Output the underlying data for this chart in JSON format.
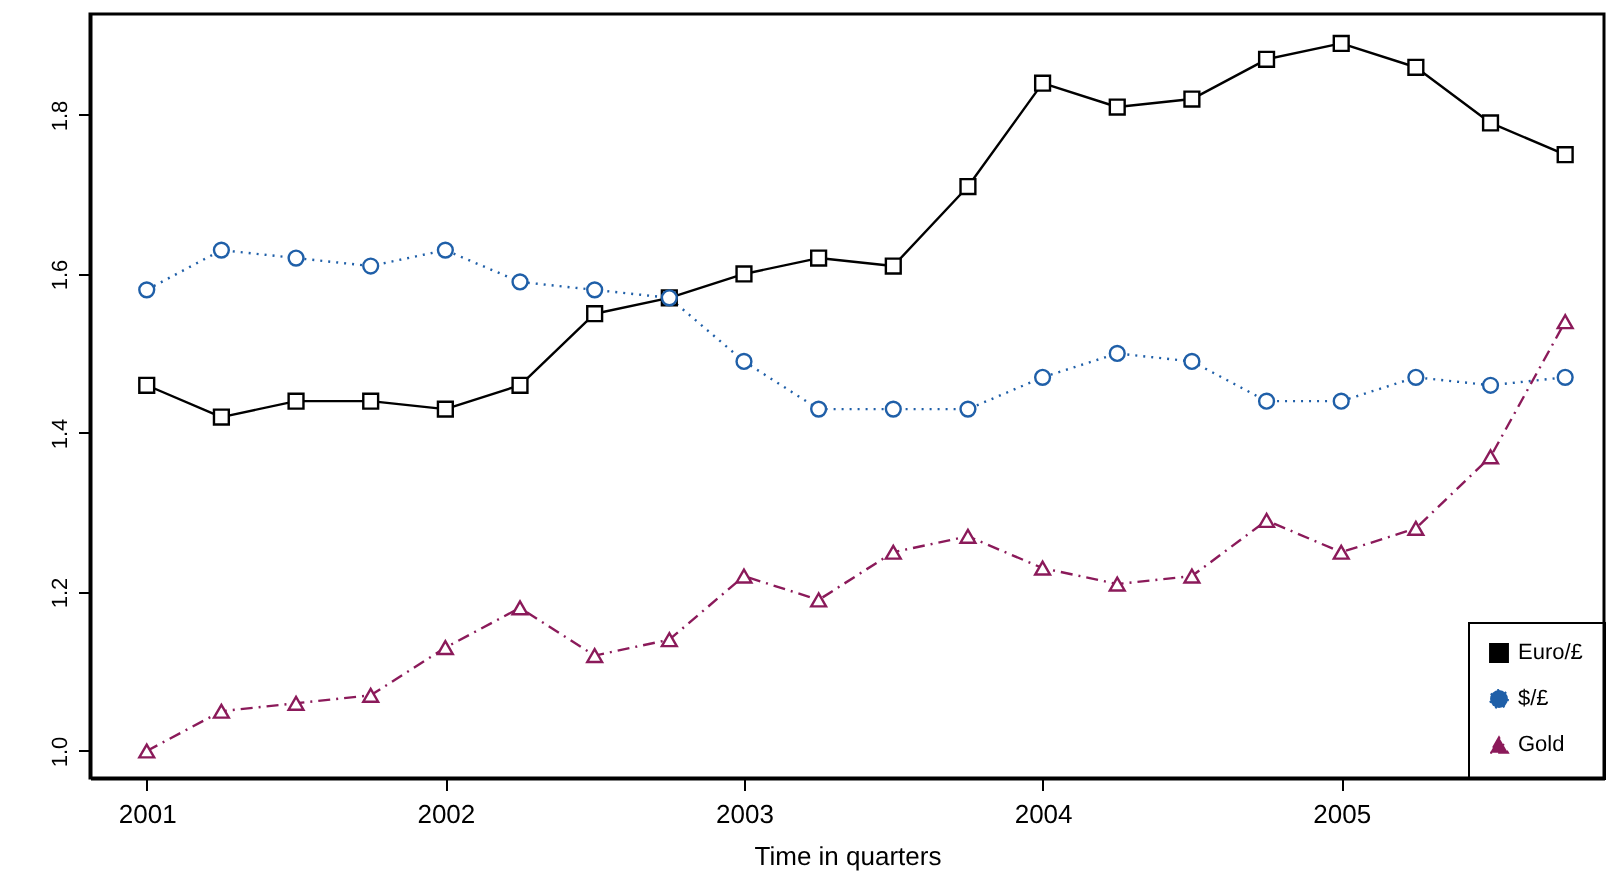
{
  "chart_data": {
    "type": "line",
    "xlabel": "Time in quarters",
    "x": [
      2001,
      2001.25,
      2001.5,
      2001.75,
      2002,
      2002.25,
      2002.5,
      2002.75,
      2003,
      2003.25,
      2003.5,
      2003.75,
      2004,
      2004.25,
      2004.5,
      2004.75,
      2005,
      2005.25,
      2005.5,
      2005.75
    ],
    "series": [
      {
        "name": "Euro/£",
        "color": "#000000",
        "marker": "square",
        "line_style": "solid",
        "values": [
          1.46,
          1.42,
          1.44,
          1.44,
          1.43,
          1.46,
          1.55,
          1.57,
          1.6,
          1.62,
          1.61,
          1.71,
          1.84,
          1.81,
          1.82,
          1.87,
          1.89,
          1.86,
          1.79,
          1.75
        ]
      },
      {
        "name": "$/£",
        "color": "#1f5fa8",
        "marker": "circle",
        "line_style": "dotted",
        "values": [
          1.58,
          1.63,
          1.62,
          1.61,
          1.63,
          1.59,
          1.58,
          1.57,
          1.49,
          1.43,
          1.43,
          1.43,
          1.47,
          1.5,
          1.49,
          1.44,
          1.44,
          1.47,
          1.46,
          1.47
        ]
      },
      {
        "name": "Gold",
        "color": "#8b1a5a",
        "marker": "triangle",
        "line_style": "dashed",
        "values": [
          1.0,
          1.05,
          1.06,
          1.07,
          1.13,
          1.18,
          1.12,
          1.14,
          1.22,
          1.19,
          1.25,
          1.27,
          1.23,
          1.21,
          1.22,
          1.29,
          1.25,
          1.28,
          1.37,
          1.54
        ]
      }
    ],
    "xlim": [
      2000.81,
      2005.88
    ],
    "xticks": [
      2001,
      2002,
      2003,
      2004,
      2005
    ],
    "ylim": [
      0.966,
      1.927
    ],
    "yticks": [
      {
        "value": 1.0,
        "label": "1.0"
      },
      1.2,
      1.4,
      1.6,
      1.8
    ],
    "grid": false,
    "legend": "bottom right"
  }
}
